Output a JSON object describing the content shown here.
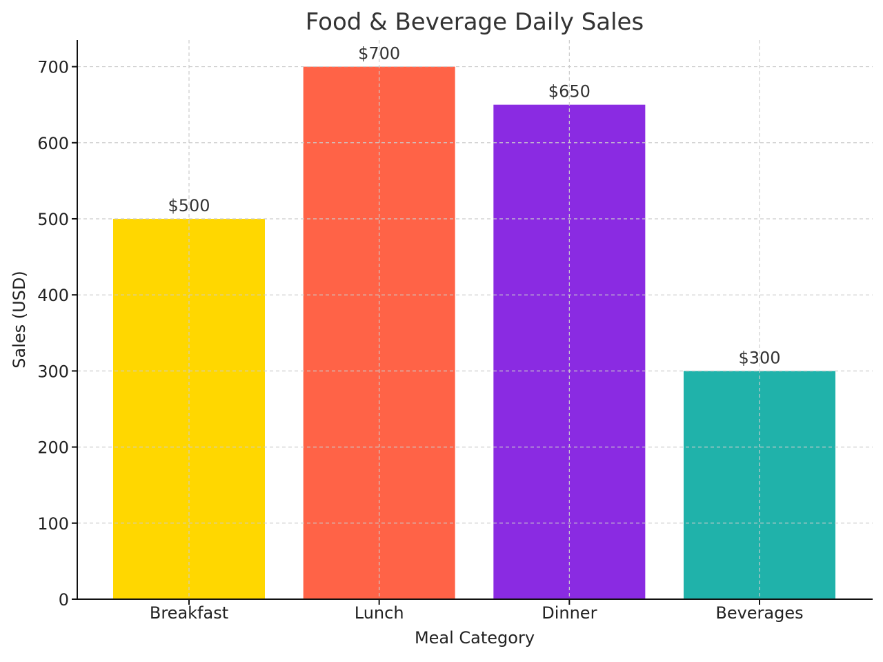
{
  "chart_data": {
    "type": "bar",
    "title": "Food & Beverage Daily Sales",
    "xlabel": "Meal Category",
    "ylabel": "Sales (USD)",
    "categories": [
      "Breakfast",
      "Lunch",
      "Dinner",
      "Beverages"
    ],
    "values": [
      500,
      700,
      650,
      300
    ],
    "value_labels": [
      "$500",
      "$700",
      "$650",
      "$300"
    ],
    "colors": [
      "#FFD700",
      "#FF6347",
      "#8A2BE2",
      "#20B2AA"
    ],
    "ylim": [
      0,
      735
    ],
    "yticks": [
      0,
      100,
      200,
      300,
      400,
      500,
      600,
      700
    ],
    "grid": true
  }
}
